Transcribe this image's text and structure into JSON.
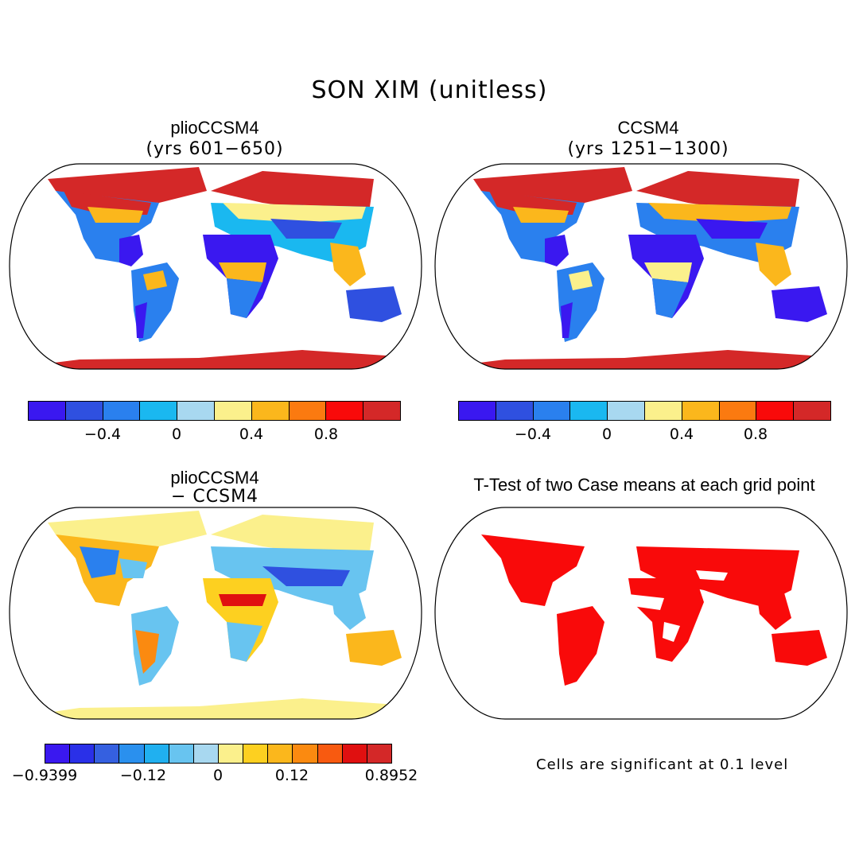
{
  "title": "SON XIM (unitless)",
  "panels": [
    {
      "title": "plioCCSM4",
      "subtitle": "(yrs 601−650)"
    },
    {
      "title": "CCSM4",
      "subtitle": "(yrs 1251−1300)"
    },
    {
      "title": "plioCCSM4",
      "subtitle": "− CCSM4"
    },
    {
      "title": "T-Test of two Case means at each grid point",
      "subtitle": ""
    }
  ],
  "colorbars": {
    "abs": {
      "colors": [
        "#3a18f0",
        "#2f50e0",
        "#2a80ee",
        "#1ab8f0",
        "#a8d8f0",
        "#fbf08c",
        "#fbb71c",
        "#fb7a10",
        "#f90a0a",
        "#d42828"
      ],
      "ticks": [
        "−0.4",
        "0",
        "0.4",
        "0.8"
      ]
    },
    "diff": {
      "colors": [
        "#3a18f0",
        "#2a30e8",
        "#3560e0",
        "#2a90ee",
        "#20b0f0",
        "#68c4f0",
        "#a8d8f0",
        "#fbf08c",
        "#fdd020",
        "#fbb71c",
        "#fb8a10",
        "#f85a10",
        "#e01010",
        "#d42828"
      ],
      "ticks": [
        "−0.9399",
        "−0.12",
        "0",
        "0.12",
        "0.8952"
      ]
    }
  },
  "footnote": "Cells are significant at 0.1 level"
}
